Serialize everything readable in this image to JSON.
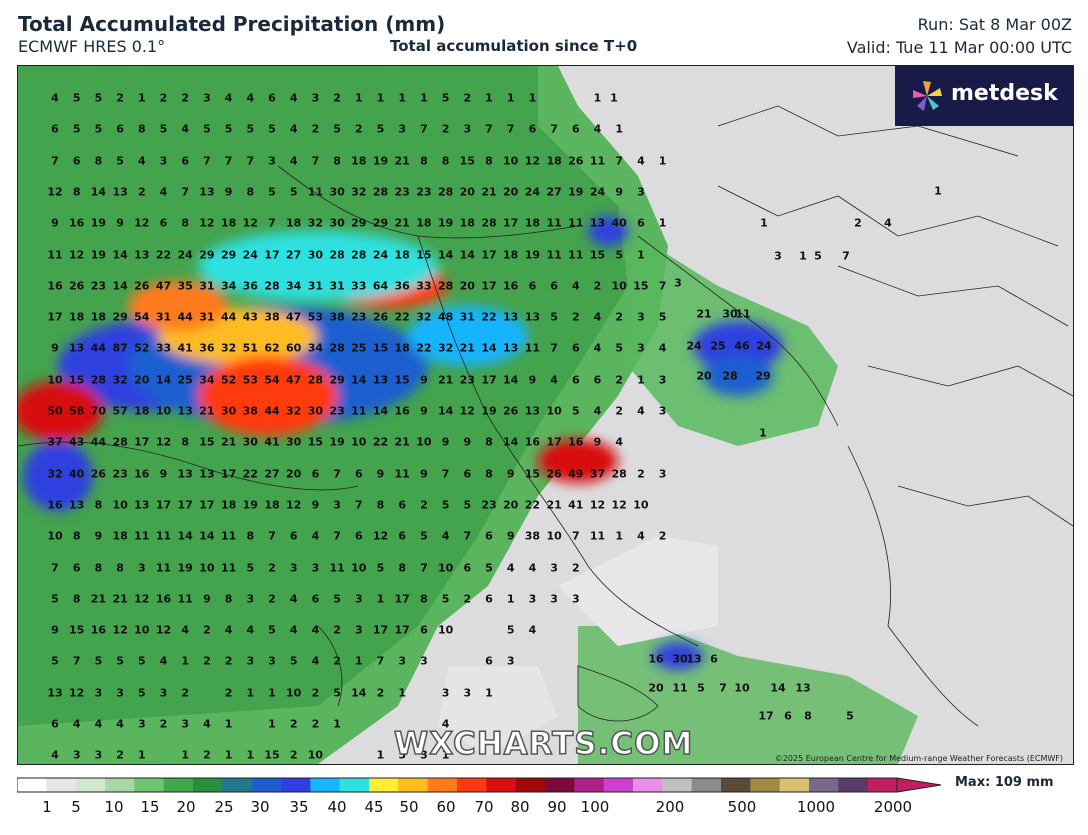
{
  "header": {
    "title": "Total Accumulated Precipitation (mm)",
    "model": "ECMWF HRES 0.1°",
    "subtitle": "Total accumulation since T+0",
    "run": "Run: Sat 8 Mar 00Z",
    "valid": "Valid: Tue 11 Mar 00:00 UTC"
  },
  "logo": {
    "text": "metdesk",
    "icon": "pinwheel-logo-icon"
  },
  "watermark": "WXCHARTS.COM",
  "copyright": "©2025 European Centre for Medium-range Weather Forecasts (ECMWF)",
  "legend": {
    "ticks": [
      "1",
      "5",
      "10",
      "15",
      "20",
      "25",
      "30",
      "35",
      "40",
      "45",
      "50",
      "60",
      "70",
      "80",
      "90",
      "100",
      "200",
      "500",
      "1000",
      "2000"
    ],
    "max_label": "Max: 109 mm",
    "colors": [
      "#ffffff",
      "#e6e6e6",
      "#cfe8cf",
      "#a6d9a6",
      "#6fc46f",
      "#3fa84a",
      "#2a8f3c",
      "#1f7a8c",
      "#1d5fd0",
      "#2f3fe0",
      "#18b4ff",
      "#2ee0e0",
      "#ffee33",
      "#ffbb22",
      "#ff7a1a",
      "#ff3a10",
      "#d81010",
      "#a00a0a",
      "#7a0a3a",
      "#b0208a",
      "#d040d0",
      "#e890e8",
      "#c0c0c0",
      "#8a8a8a",
      "#5a4a3a",
      "#a08a40",
      "#d8c070",
      "#7a6a8a",
      "#5a3a6a",
      "#c02060"
    ]
  },
  "map": {
    "values": [
      [
        "4",
        "5",
        "5",
        "2",
        "1",
        "2",
        "2",
        "3",
        "4",
        "4",
        "6",
        "4",
        "3",
        "2",
        "1",
        "1",
        "1",
        "1",
        "5",
        "2",
        "1",
        "1",
        "1",
        "",
        "",
        "1",
        "",
        ""
      ],
      [
        "6",
        "5",
        "5",
        "6",
        "8",
        "5",
        "4",
        "5",
        "5",
        "5",
        "5",
        "4",
        "2",
        "5",
        "2",
        "5",
        "3",
        "7",
        "2",
        "3",
        "7",
        "7",
        "6",
        "7",
        "6",
        "4",
        "1",
        ""
      ],
      [
        "7",
        "6",
        "8",
        "5",
        "4",
        "3",
        "6",
        "7",
        "7",
        "7",
        "3",
        "4",
        "7",
        "8",
        "18",
        "19",
        "21",
        "8",
        "8",
        "15",
        "8",
        "10",
        "12",
        "18",
        "26",
        "11",
        "7",
        "4",
        "1"
      ],
      [
        "12",
        "8",
        "14",
        "13",
        "2",
        "4",
        "7",
        "13",
        "9",
        "8",
        "5",
        "5",
        "11",
        "30",
        "32",
        "28",
        "23",
        "23",
        "28",
        "20",
        "21",
        "20",
        "24",
        "27",
        "19",
        "24",
        "9",
        "3"
      ],
      [
        "9",
        "16",
        "19",
        "9",
        "12",
        "6",
        "8",
        "12",
        "18",
        "12",
        "7",
        "18",
        "32",
        "30",
        "29",
        "29",
        "21",
        "18",
        "19",
        "18",
        "28",
        "17",
        "18",
        "11",
        "11",
        "13",
        "40",
        "6",
        "1"
      ],
      [
        "11",
        "12",
        "19",
        "14",
        "13",
        "22",
        "24",
        "29",
        "29",
        "24",
        "17",
        "27",
        "30",
        "28",
        "28",
        "24",
        "18",
        "15",
        "14",
        "14",
        "17",
        "18",
        "19",
        "11",
        "11",
        "15",
        "5",
        "1"
      ],
      [
        "16",
        "26",
        "23",
        "14",
        "26",
        "47",
        "35",
        "31",
        "34",
        "36",
        "28",
        "34",
        "31",
        "31",
        "33",
        "64",
        "36",
        "33",
        "28",
        "20",
        "17",
        "16",
        "6",
        "6",
        "4",
        "2",
        "10",
        "15",
        "7"
      ],
      [
        "17",
        "18",
        "18",
        "29",
        "54",
        "31",
        "44",
        "31",
        "44",
        "43",
        "38",
        "47",
        "53",
        "38",
        "23",
        "26",
        "22",
        "32",
        "48",
        "31",
        "22",
        "13",
        "13",
        "5",
        "2",
        "4",
        "2",
        "3",
        "5"
      ],
      [
        "9",
        "13",
        "44",
        "87",
        "52",
        "33",
        "41",
        "36",
        "32",
        "51",
        "62",
        "60",
        "34",
        "28",
        "25",
        "15",
        "18",
        "22",
        "32",
        "21",
        "14",
        "13",
        "11",
        "7",
        "6",
        "4",
        "5",
        "3",
        "4"
      ],
      [
        "10",
        "15",
        "28",
        "32",
        "20",
        "14",
        "25",
        "34",
        "52",
        "53",
        "54",
        "47",
        "28",
        "29",
        "14",
        "13",
        "15",
        "9",
        "21",
        "23",
        "17",
        "14",
        "9",
        "4",
        "6",
        "6",
        "2",
        "1",
        "3"
      ],
      [
        "50",
        "58",
        "70",
        "57",
        "18",
        "10",
        "13",
        "21",
        "30",
        "38",
        "44",
        "32",
        "30",
        "23",
        "11",
        "14",
        "16",
        "9",
        "14",
        "12",
        "19",
        "26",
        "13",
        "10",
        "5",
        "4",
        "2",
        "4",
        "3"
      ],
      [
        "37",
        "43",
        "44",
        "28",
        "17",
        "12",
        "8",
        "15",
        "21",
        "30",
        "41",
        "30",
        "15",
        "19",
        "10",
        "22",
        "21",
        "10",
        "9",
        "9",
        "8",
        "14",
        "16",
        "17",
        "16",
        "9",
        "4"
      ],
      [
        "32",
        "40",
        "26",
        "23",
        "16",
        "9",
        "13",
        "13",
        "17",
        "22",
        "27",
        "20",
        "6",
        "7",
        "6",
        "9",
        "11",
        "9",
        "7",
        "6",
        "8",
        "9",
        "15",
        "26",
        "49",
        "37",
        "28",
        "2",
        "3"
      ],
      [
        "16",
        "13",
        "8",
        "10",
        "13",
        "17",
        "17",
        "17",
        "18",
        "19",
        "18",
        "12",
        "9",
        "3",
        "7",
        "8",
        "6",
        "2",
        "5",
        "5",
        "23",
        "20",
        "22",
        "21",
        "41",
        "12",
        "12",
        "10"
      ],
      [
        "10",
        "8",
        "9",
        "18",
        "11",
        "11",
        "14",
        "14",
        "11",
        "8",
        "7",
        "6",
        "4",
        "7",
        "6",
        "12",
        "6",
        "5",
        "4",
        "7",
        "6",
        "9",
        "38",
        "10",
        "7",
        "11",
        "1",
        "4",
        "2"
      ],
      [
        "7",
        "6",
        "8",
        "8",
        "3",
        "11",
        "19",
        "10",
        "11",
        "5",
        "2",
        "3",
        "3",
        "11",
        "10",
        "5",
        "8",
        "7",
        "10",
        "6",
        "5",
        "4",
        "4",
        "3",
        "2"
      ],
      [
        "5",
        "8",
        "21",
        "21",
        "12",
        "16",
        "11",
        "9",
        "8",
        "3",
        "2",
        "4",
        "6",
        "5",
        "3",
        "1",
        "17",
        "8",
        "5",
        "2",
        "6",
        "1",
        "3",
        "3",
        "3"
      ],
      [
        "9",
        "15",
        "16",
        "12",
        "10",
        "12",
        "4",
        "2",
        "4",
        "4",
        "5",
        "4",
        "4",
        "2",
        "3",
        "17",
        "17",
        "6",
        "10",
        "",
        "",
        "5",
        "4"
      ],
      [
        "5",
        "7",
        "5",
        "5",
        "5",
        "4",
        "1",
        "2",
        "2",
        "3",
        "3",
        "5",
        "4",
        "2",
        "1",
        "7",
        "3",
        "3",
        "",
        "",
        "6",
        "3"
      ],
      [
        "13",
        "12",
        "3",
        "3",
        "5",
        "3",
        "2",
        "",
        "2",
        "1",
        "1",
        "10",
        "2",
        "5",
        "14",
        "2",
        "1",
        "",
        "3",
        "3",
        "1"
      ],
      [
        "6",
        "4",
        "4",
        "4",
        "3",
        "2",
        "3",
        "4",
        "1",
        "",
        "1",
        "2",
        "2",
        "1",
        "",
        "",
        "",
        "",
        "4"
      ],
      [
        "4",
        "3",
        "3",
        "2",
        "1",
        "",
        "1",
        "2",
        "1",
        "1",
        "15",
        "2",
        "10",
        "",
        "",
        "1",
        "5",
        "3",
        "1"
      ]
    ],
    "east_values": [
      {
        "t": "1",
        "c": "1"
      },
      {
        "t": "1",
        "c": "1"
      },
      {
        "t": "1",
        "c": "1"
      },
      {
        "t": "4",
        "c": "4"
      },
      {
        "t": "2",
        "c": "2"
      },
      {
        "t": "3",
        "c": "3"
      },
      {
        "t": "1",
        "c": "1"
      },
      {
        "t": "5",
        "c": "5"
      },
      {
        "t": "7",
        "c": "7"
      },
      {
        "t": "3",
        "c": "3"
      },
      {
        "t": "21",
        "c": "21"
      },
      {
        "t": "30",
        "c": "30"
      },
      {
        "t": "11",
        "c": "11"
      },
      {
        "t": "24",
        "c": "24"
      },
      {
        "t": "25",
        "c": "25"
      },
      {
        "t": "46",
        "c": "46"
      },
      {
        "t": "24",
        "c": "24"
      },
      {
        "t": "20",
        "c": "20"
      },
      {
        "t": "28",
        "c": "28"
      },
      {
        "t": "29",
        "c": "29"
      },
      {
        "t": "1",
        "c": "1"
      },
      {
        "t": "16",
        "c": "16"
      },
      {
        "t": "30",
        "c": "30"
      },
      {
        "t": "13",
        "c": "13"
      },
      {
        "t": "6",
        "c": "6"
      },
      {
        "t": "20",
        "c": "20"
      },
      {
        "t": "11",
        "c": "11"
      },
      {
        "t": "5",
        "c": "5"
      },
      {
        "t": "7",
        "c": "7"
      },
      {
        "t": "10",
        "c": "10"
      },
      {
        "t": "14",
        "c": "14"
      },
      {
        "t": "13",
        "c": "13"
      },
      {
        "t": "17",
        "c": "17"
      },
      {
        "t": "6",
        "c": "6"
      },
      {
        "t": "8",
        "c": "8"
      },
      {
        "t": "5",
        "c": "5"
      }
    ]
  }
}
